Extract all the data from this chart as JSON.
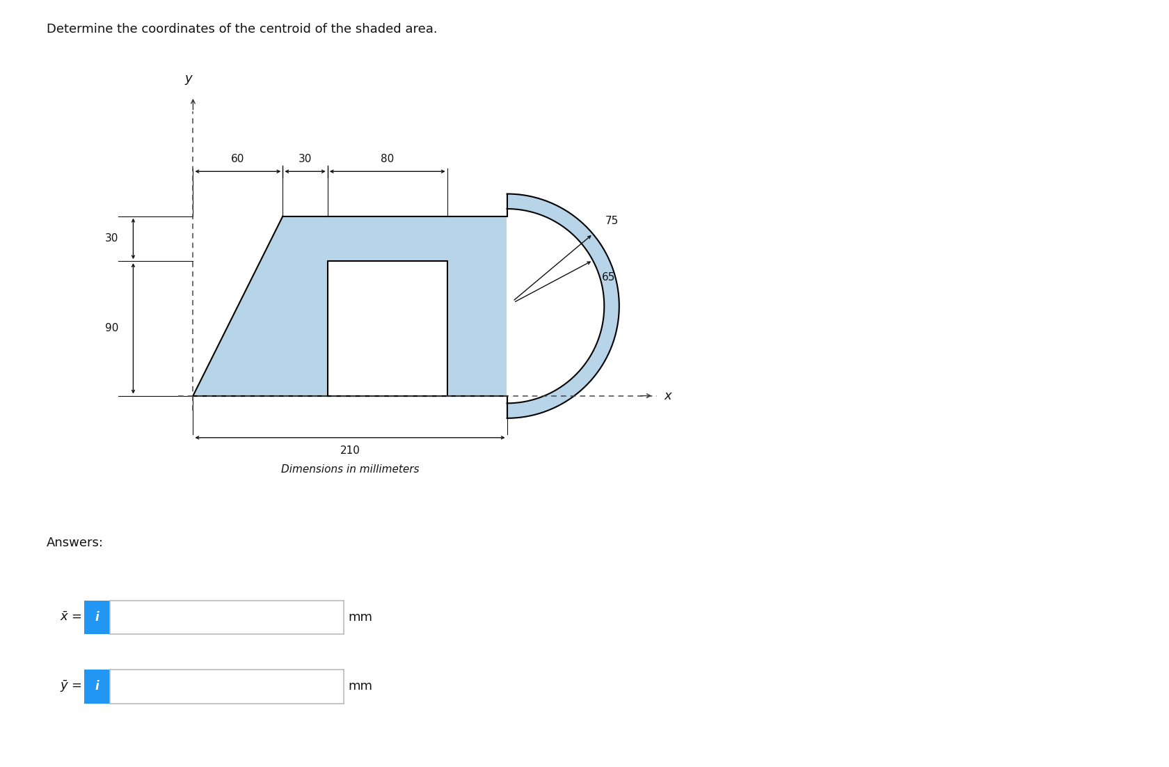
{
  "title": "Determine the coordinates of the centroid of the shaded area.",
  "title_fontsize": 13,
  "background_color": "#ffffff",
  "shape_fill_color": "#b8d4e8",
  "shape_edge_color": "#000000",
  "dim_line_color": "#000000",
  "axis_dash_color": "#555555",
  "dim_60": "60",
  "dim_30_horiz": "30",
  "dim_80": "80",
  "dim_30_vert": "30",
  "dim_90": "90",
  "dim_75": "75",
  "dim_65": "65",
  "dim_210": "210",
  "dim_text": "Dimensions in millimeters",
  "answers_label": "Answers:",
  "xbar_label": "$\\bar{x}$ =",
  "ybar_label": "$\\bar{y}$ =",
  "mm_label": "mm",
  "info_box_color": "#2196f3",
  "input_box_border": "#bbbbbb",
  "lw": 1.3,
  "shape_lw": 1.5
}
